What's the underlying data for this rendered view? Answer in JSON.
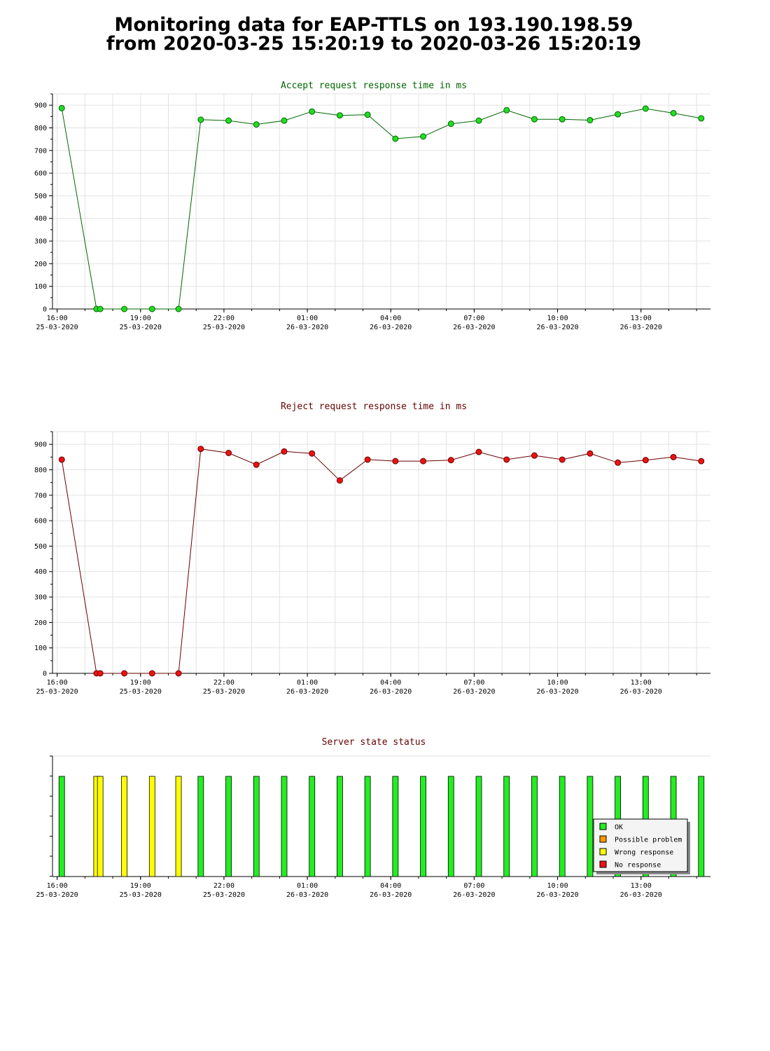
{
  "page": {
    "title_line1": "Monitoring data for EAP-TTLS on 193.190.198.59",
    "title_line2": "from 2020-03-25 15:20:19 to 2020-03-26 15:20:19"
  },
  "chart_data": [
    {
      "type": "line",
      "title": "Accept request response time in ms",
      "xlabel": "",
      "ylabel": "",
      "ylim": [
        0,
        950
      ],
      "xlim": [
        "2020-03-25 15:50",
        "2020-03-26 15:30"
      ],
      "grid": true,
      "yticks": [
        0,
        100,
        200,
        300,
        400,
        500,
        600,
        700,
        800,
        900
      ],
      "xtick_labels": [
        {
          "time": "2020-03-25 16:00",
          "label": "16:00",
          "date": "25-03-2020"
        },
        {
          "time": "2020-03-25 19:00",
          "label": "19:00",
          "date": "25-03-2020"
        },
        {
          "time": "2020-03-25 22:00",
          "label": "22:00",
          "date": "25-03-2020"
        },
        {
          "time": "2020-03-26 01:00",
          "label": "01:00",
          "date": "26-03-2020"
        },
        {
          "time": "2020-03-26 04:00",
          "label": "04:00",
          "date": "26-03-2020"
        },
        {
          "time": "2020-03-26 07:00",
          "label": "07:00",
          "date": "26-03-2020"
        },
        {
          "time": "2020-03-26 10:00",
          "label": "10:00",
          "date": "26-03-2020"
        },
        {
          "time": "2020-03-26 13:00",
          "label": "13:00",
          "date": "26-03-2020"
        }
      ],
      "line_color": "#006600",
      "marker_color": "#22dd22",
      "title_color": "#006600",
      "series": [
        {
          "x": [
            "2020-03-25 16:10",
            "2020-03-25 17:25",
            "2020-03-25 17:33",
            "2020-03-25 18:25",
            "2020-03-25 19:25",
            "2020-03-25 20:22",
            "2020-03-25 21:10",
            "2020-03-25 22:10",
            "2020-03-25 23:10",
            "2020-03-26 00:10",
            "2020-03-26 01:10",
            "2020-03-26 02:10",
            "2020-03-26 03:10",
            "2020-03-26 04:10",
            "2020-03-26 05:10",
            "2020-03-26 06:10",
            "2020-03-26 07:10",
            "2020-03-26 08:10",
            "2020-03-26 09:10",
            "2020-03-26 10:10",
            "2020-03-26 11:10",
            "2020-03-26 12:10",
            "2020-03-26 13:10",
            "2020-03-26 14:10",
            "2020-03-26 15:10"
          ],
          "values": [
            887,
            0,
            0,
            0,
            0,
            0,
            836,
            832,
            815,
            832,
            872,
            855,
            858,
            752,
            762,
            818,
            832,
            878,
            838,
            838,
            834,
            860,
            885,
            865,
            842
          ]
        }
      ]
    },
    {
      "type": "line",
      "title": "Reject request response time in ms",
      "xlabel": "",
      "ylabel": "",
      "ylim": [
        0,
        950
      ],
      "xlim": [
        "2020-03-25 15:50",
        "2020-03-26 15:30"
      ],
      "grid": true,
      "yticks": [
        0,
        100,
        200,
        300,
        400,
        500,
        600,
        700,
        800,
        900
      ],
      "xtick_labels": [
        {
          "time": "2020-03-25 16:00",
          "label": "16:00",
          "date": "25-03-2020"
        },
        {
          "time": "2020-03-25 19:00",
          "label": "19:00",
          "date": "25-03-2020"
        },
        {
          "time": "2020-03-25 22:00",
          "label": "22:00",
          "date": "25-03-2020"
        },
        {
          "time": "2020-03-26 01:00",
          "label": "01:00",
          "date": "26-03-2020"
        },
        {
          "time": "2020-03-26 04:00",
          "label": "04:00",
          "date": "26-03-2020"
        },
        {
          "time": "2020-03-26 07:00",
          "label": "07:00",
          "date": "26-03-2020"
        },
        {
          "time": "2020-03-26 10:00",
          "label": "10:00",
          "date": "26-03-2020"
        },
        {
          "time": "2020-03-26 13:00",
          "label": "13:00",
          "date": "26-03-2020"
        }
      ],
      "line_color": "#660000",
      "marker_color": "#ee1111",
      "title_color": "#660000",
      "series": [
        {
          "x": [
            "2020-03-25 16:10",
            "2020-03-25 17:25",
            "2020-03-25 17:33",
            "2020-03-25 18:25",
            "2020-03-25 19:25",
            "2020-03-25 20:22",
            "2020-03-25 21:10",
            "2020-03-25 22:10",
            "2020-03-25 23:10",
            "2020-03-26 00:10",
            "2020-03-26 01:10",
            "2020-03-26 02:10",
            "2020-03-26 03:10",
            "2020-03-26 04:10",
            "2020-03-26 05:10",
            "2020-03-26 06:10",
            "2020-03-26 07:10",
            "2020-03-26 08:10",
            "2020-03-26 09:10",
            "2020-03-26 10:10",
            "2020-03-26 11:10",
            "2020-03-26 12:10",
            "2020-03-26 13:10",
            "2020-03-26 14:10",
            "2020-03-26 15:10"
          ],
          "values": [
            840,
            0,
            0,
            0,
            0,
            0,
            882,
            866,
            820,
            872,
            864,
            758,
            840,
            834,
            834,
            838,
            870,
            840,
            856,
            840,
            864,
            828,
            838,
            850,
            834
          ]
        }
      ]
    },
    {
      "type": "bar",
      "title": "Server state status",
      "title_color": "#660000",
      "xlim": [
        "2020-03-25 15:50",
        "2020-03-26 15:30"
      ],
      "xtick_labels": [
        {
          "time": "2020-03-25 16:00",
          "label": "16:00",
          "date": "25-03-2020"
        },
        {
          "time": "2020-03-25 19:00",
          "label": "19:00",
          "date": "25-03-2020"
        },
        {
          "time": "2020-03-25 22:00",
          "label": "22:00",
          "date": "25-03-2020"
        },
        {
          "time": "2020-03-26 01:00",
          "label": "01:00",
          "date": "26-03-2020"
        },
        {
          "time": "2020-03-26 04:00",
          "label": "04:00",
          "date": "26-03-2020"
        },
        {
          "time": "2020-03-26 07:00",
          "label": "07:00",
          "date": "26-03-2020"
        },
        {
          "time": "2020-03-26 10:00",
          "label": "10:00",
          "date": "26-03-2020"
        },
        {
          "time": "2020-03-26 13:00",
          "label": "13:00",
          "date": "26-03-2020"
        }
      ],
      "legend_position": "bottom-right",
      "legend": [
        {
          "key": "ok",
          "label": "OK",
          "color": "#22ee22"
        },
        {
          "key": "possible",
          "label": "Possible problem",
          "color": "#ff9900"
        },
        {
          "key": "wrong",
          "label": "Wrong response",
          "color": "#ffff00"
        },
        {
          "key": "none",
          "label": "No response",
          "color": "#ee1111"
        }
      ],
      "x": [
        "2020-03-25 16:10",
        "2020-03-25 17:25",
        "2020-03-25 17:33",
        "2020-03-25 18:25",
        "2020-03-25 19:25",
        "2020-03-25 20:22",
        "2020-03-25 21:10",
        "2020-03-25 22:10",
        "2020-03-25 23:10",
        "2020-03-26 00:10",
        "2020-03-26 01:10",
        "2020-03-26 02:10",
        "2020-03-26 03:10",
        "2020-03-26 04:10",
        "2020-03-26 05:10",
        "2020-03-26 06:10",
        "2020-03-26 07:10",
        "2020-03-26 08:10",
        "2020-03-26 09:10",
        "2020-03-26 10:10",
        "2020-03-26 11:10",
        "2020-03-26 12:10",
        "2020-03-26 13:10",
        "2020-03-26 14:10",
        "2020-03-26 15:10"
      ],
      "states": [
        "ok",
        "wrong",
        "wrong",
        "wrong",
        "wrong",
        "wrong",
        "ok",
        "ok",
        "ok",
        "ok",
        "ok",
        "ok",
        "ok",
        "ok",
        "ok",
        "ok",
        "ok",
        "ok",
        "ok",
        "ok",
        "ok",
        "ok",
        "ok",
        "ok",
        "ok"
      ]
    }
  ]
}
